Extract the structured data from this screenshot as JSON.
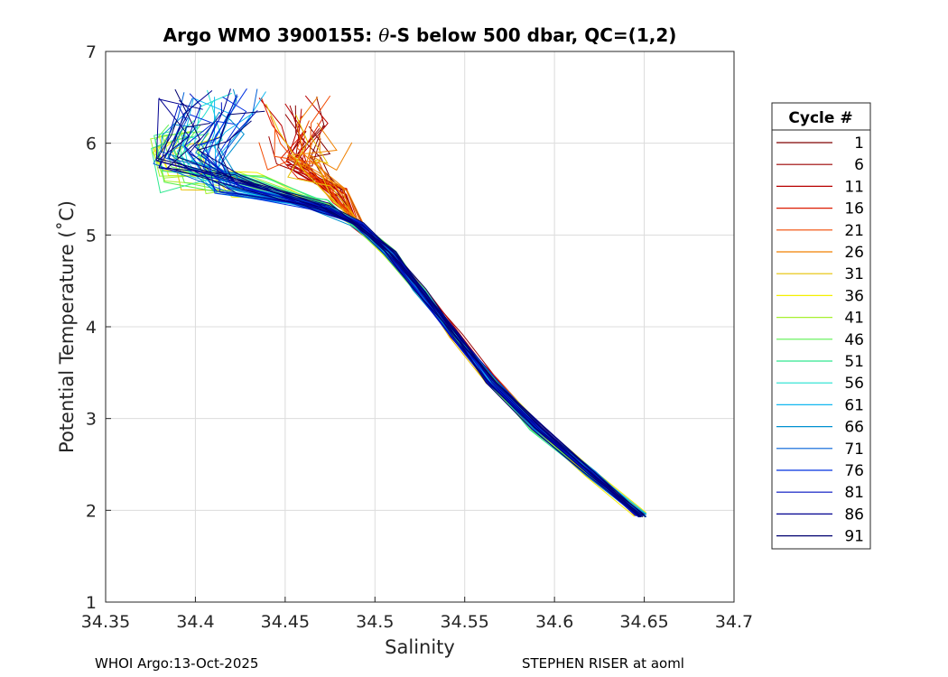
{
  "chart_data": {
    "type": "line",
    "title_prefix": "Argo WMO 3900155: ",
    "title_theta": "θ",
    "title_suffix": "-S below 500 dbar,  QC=(1,2)",
    "xlabel": "Salinity",
    "ylabel": "Potential Temperature (˚C)",
    "xlim": [
      34.35,
      34.7
    ],
    "ylim": [
      1,
      7
    ],
    "xticks": [
      "34.35",
      "34.4",
      "34.45",
      "34.5",
      "34.55",
      "34.6",
      "34.65",
      "34.7"
    ],
    "yticks": [
      "1",
      "2",
      "3",
      "4",
      "5",
      "6",
      "7"
    ],
    "grid": true,
    "legend": {
      "title": "Cycle #",
      "position": "right",
      "entries": [
        {
          "label": "1",
          "color": "#800000"
        },
        {
          "label": "6",
          "color": "#9b0000"
        },
        {
          "label": "11",
          "color": "#b80000"
        },
        {
          "label": "16",
          "color": "#dd1a00"
        },
        {
          "label": "21",
          "color": "#f24a00"
        },
        {
          "label": "26",
          "color": "#f08000"
        },
        {
          "label": "31",
          "color": "#e6c000"
        },
        {
          "label": "36",
          "color": "#f4f000"
        },
        {
          "label": "41",
          "color": "#a8f030"
        },
        {
          "label": "46",
          "color": "#5cf050"
        },
        {
          "label": "51",
          "color": "#30e890"
        },
        {
          "label": "56",
          "color": "#20e0d0"
        },
        {
          "label": "61",
          "color": "#10b8f0"
        },
        {
          "label": "66",
          "color": "#0090d0"
        },
        {
          "label": "71",
          "color": "#0060d8"
        },
        {
          "label": "76",
          "color": "#0030e0"
        },
        {
          "label": "81",
          "color": "#0010c0"
        },
        {
          "label": "86",
          "color": "#000090"
        },
        {
          "label": "91",
          "color": "#000070"
        }
      ]
    },
    "profile_trend": {
      "description_points": [
        {
          "s": 34.65,
          "t": 1.95
        },
        {
          "s": 34.6,
          "t": 2.75
        },
        {
          "s": 34.55,
          "t": 3.75
        },
        {
          "s": 34.52,
          "t": 4.45
        },
        {
          "s": 34.49,
          "t": 5.15
        },
        {
          "s": 34.44,
          "t": 5.45
        },
        {
          "s": 34.4,
          "t": 5.6
        }
      ]
    }
  },
  "footer": {
    "left": "WHOI Argo:13-Oct-2025",
    "right": "STEPHEN RISER at aoml"
  }
}
